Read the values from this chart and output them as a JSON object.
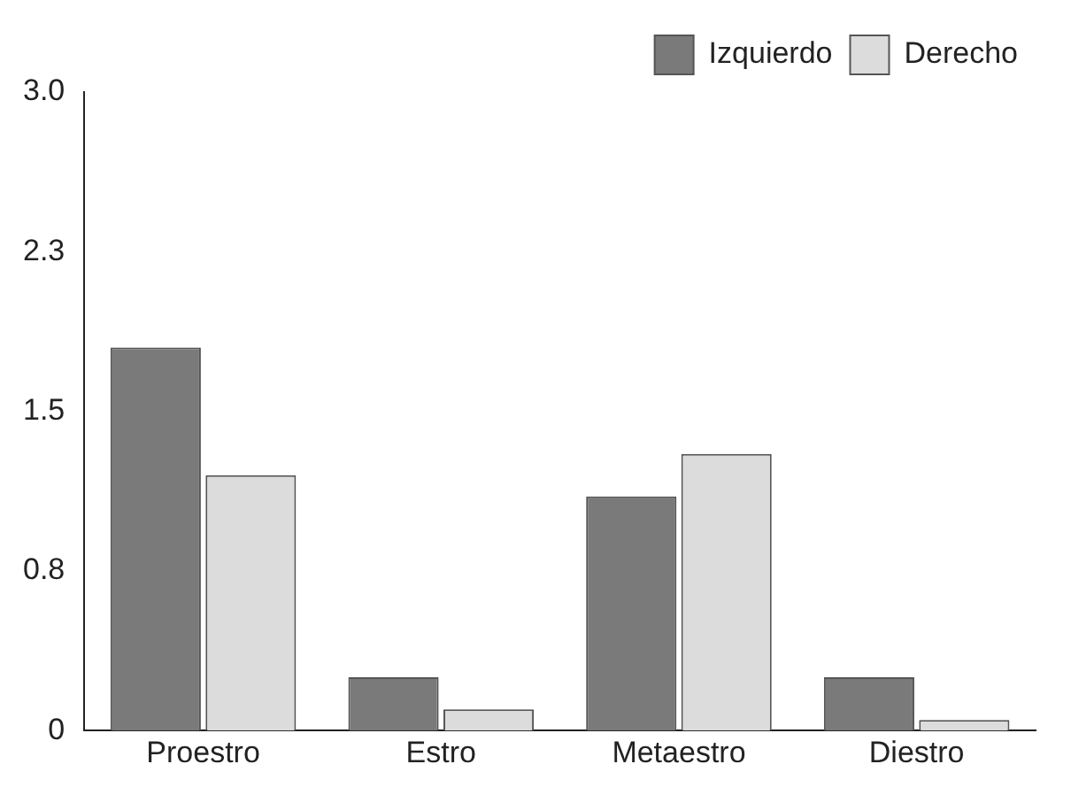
{
  "chart_data": {
    "type": "bar",
    "categories": [
      "Proestro",
      "Estro",
      "Metaestro",
      "Diestro"
    ],
    "series": [
      {
        "name": "Izquierdo",
        "color": "#7a7a7a",
        "values": [
          1.8,
          0.25,
          1.1,
          0.25
        ]
      },
      {
        "name": "Derecho",
        "color": "#dcdcdc",
        "values": [
          1.2,
          0.1,
          1.3,
          0.05
        ]
      }
    ],
    "ylim": [
      0,
      3
    ],
    "yticks": [
      0,
      {
        "value": 0.75,
        "label": "0.8"
      },
      1.5,
      {
        "value": 2.25,
        "label": "2.3"
      },
      {
        "value": 3,
        "label": "3.0"
      }
    ],
    "grid": false,
    "legend": "top right"
  }
}
